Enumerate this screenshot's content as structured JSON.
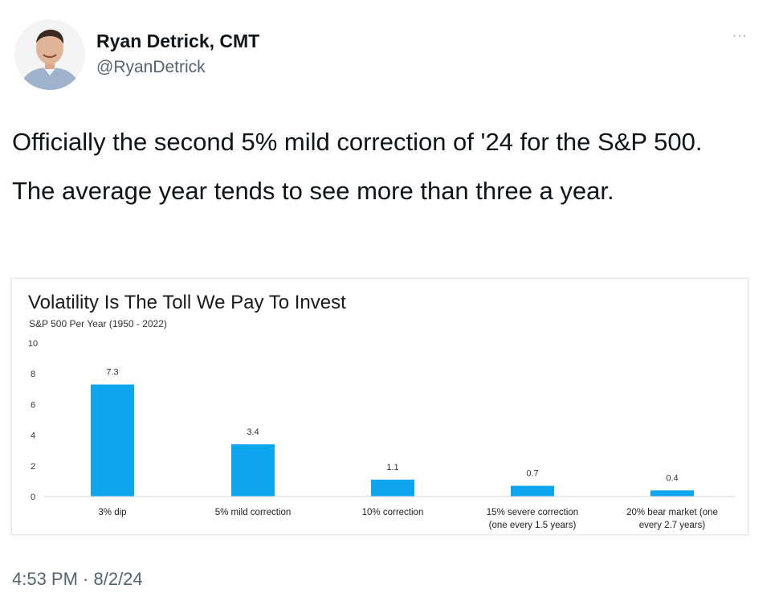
{
  "tweet": {
    "author": {
      "display_name": "Ryan Detrick, CMT",
      "handle": "@RyanDetrick"
    },
    "more_icon": "more-options-icon",
    "text_paragraphs": [
      "Officially the second 5% mild correction of '24 for the S&P 500.",
      "The average year tends to see more than three a year."
    ],
    "timestamp": "4:53 PM · 8/2/24",
    "more_label": "···"
  },
  "chart_data": {
    "type": "bar",
    "title": "Volatility Is The Toll We Pay To Invest",
    "subtitle": "S&P 500 Per Year (1950 - 2022)",
    "categories": [
      [
        "3% dip"
      ],
      [
        "5% mild correction"
      ],
      [
        "10% correction"
      ],
      [
        "15% severe correction",
        "(one every 1.5 years)"
      ],
      [
        "20% bear market (one",
        "every 2.7 years)"
      ]
    ],
    "values": [
      7.3,
      3.4,
      1.1,
      0.7,
      0.4
    ],
    "data_labels": [
      "7.3",
      "3.4",
      "1.1",
      "0.7",
      "0.4"
    ],
    "ylim": [
      0,
      10
    ],
    "yticks": [
      "10",
      "8",
      "6",
      "4",
      "2",
      "0"
    ],
    "grid": false,
    "bar_color": "#0ea5ef",
    "xlabel": "",
    "ylabel": ""
  }
}
